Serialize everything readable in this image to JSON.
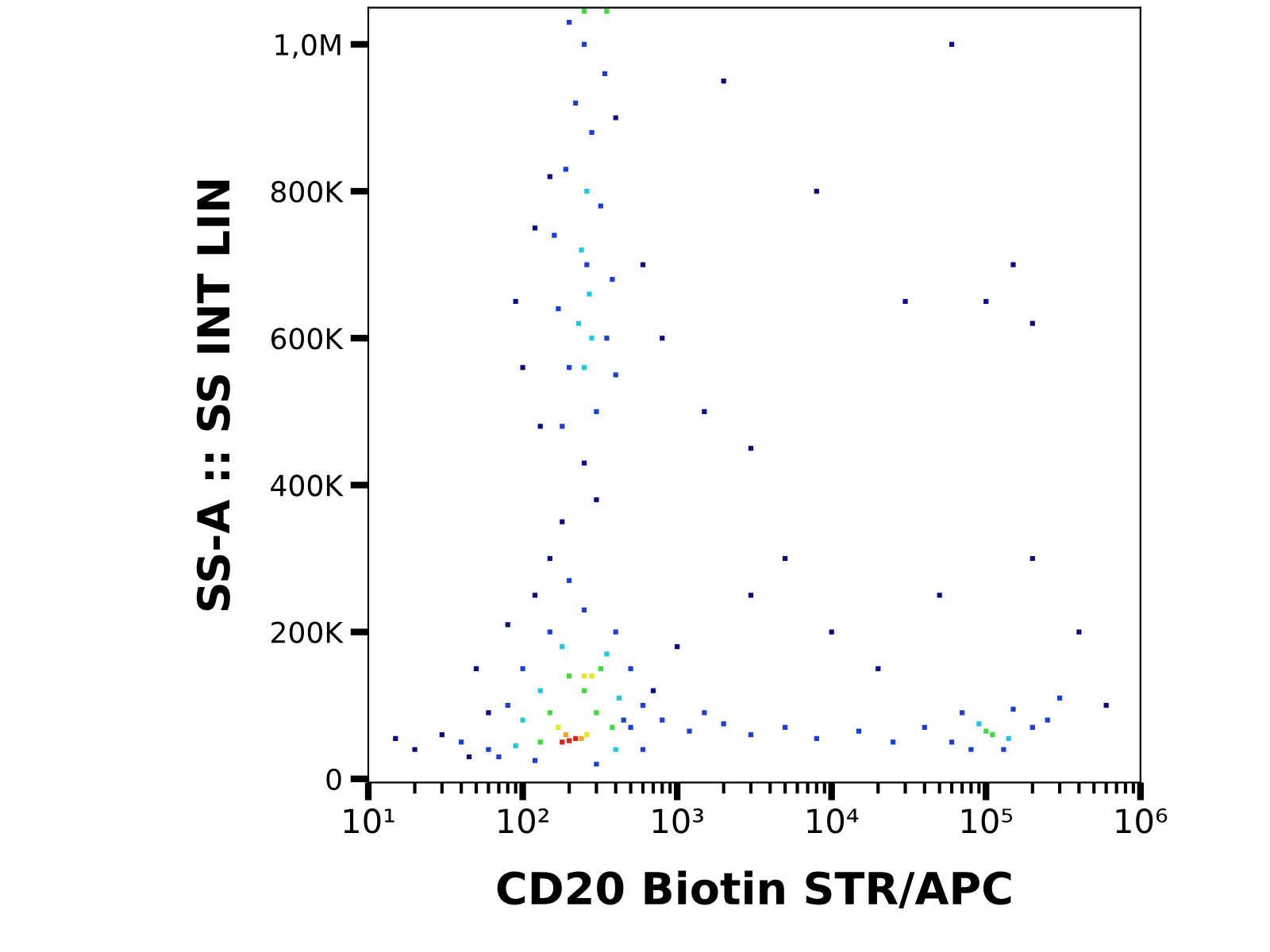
{
  "chart_data": {
    "type": "scatter",
    "xlabel": "CD20 Biotin STR/APC",
    "ylabel": "SS-A :: SS INT LIN",
    "log": "x",
    "marker": "square",
    "grid": false,
    "xlim": [
      10,
      1000000
    ],
    "xticks": [
      {
        "value": 10,
        "label": "10¹"
      },
      {
        "value": 100,
        "label": "10²"
      },
      {
        "value": 1000,
        "label": "10³"
      },
      {
        "value": 10000,
        "label": "10⁴"
      },
      {
        "value": 100000,
        "label": "10⁵"
      },
      {
        "value": 1000000,
        "label": "10⁶"
      }
    ],
    "ylim": [
      -5000,
      1050000
    ],
    "yticks": [
      0,
      {
        "value": 200000,
        "label": "200K"
      },
      {
        "value": 400000,
        "label": "400K"
      },
      {
        "value": 600000,
        "label": "600K"
      },
      {
        "value": 800000,
        "label": "800K"
      },
      {
        "value": 1000000,
        "label": "1,0M"
      }
    ],
    "x": [
      20,
      30,
      15,
      45,
      60,
      50,
      80,
      120,
      150,
      180,
      300,
      250,
      130,
      100,
      90,
      120,
      150,
      400,
      600,
      800,
      1500,
      3000,
      5000,
      10000,
      20000,
      50000,
      200000,
      400000,
      600000,
      2000,
      8000,
      30000,
      60000,
      150000,
      200000,
      100000,
      3000,
      1000,
      700,
      500,
      800,
      1200,
      2000,
      3000,
      5000,
      8000,
      15000,
      25000,
      40000,
      600,
      1500,
      60000,
      70000,
      80000,
      150000,
      200000,
      250000,
      130000,
      300000,
      90000,
      140000,
      110000,
      100000,
      180,
      300,
      200,
      350,
      170,
      260,
      320,
      190,
      280,
      220,
      340,
      250,
      200,
      380,
      160,
      400,
      230,
      270,
      240,
      280,
      250,
      260,
      250,
      350,
      60,
      80,
      100,
      150,
      250,
      400,
      500,
      450,
      40,
      70,
      120,
      300,
      600,
      200,
      100,
      130,
      350,
      180,
      420,
      90,
      400,
      150,
      250,
      320,
      200,
      130,
      300,
      380,
      280,
      170,
      260,
      250,
      190,
      240,
      200,
      220,
      180
    ],
    "values": [
      40000,
      60000,
      55000,
      30000,
      90000,
      150000,
      210000,
      250000,
      300000,
      350000,
      380000,
      430000,
      480000,
      560000,
      650000,
      750000,
      820000,
      900000,
      700000,
      600000,
      500000,
      450000,
      300000,
      200000,
      150000,
      250000,
      300000,
      200000,
      100000,
      950000,
      800000,
      650000,
      1000000,
      700000,
      620000,
      650000,
      250000,
      180000,
      120000,
      70000,
      80000,
      65000,
      75000,
      60000,
      70000,
      55000,
      65000,
      50000,
      70000,
      40000,
      90000,
      50000,
      90000,
      40000,
      95000,
      70000,
      80000,
      40000,
      110000,
      75000,
      55000,
      60000,
      65000,
      480000,
      500000,
      560000,
      600000,
      640000,
      700000,
      780000,
      830000,
      880000,
      920000,
      960000,
      1000000,
      1030000,
      680000,
      740000,
      550000,
      620000,
      660000,
      720000,
      600000,
      560000,
      800000,
      1045000,
      1045000,
      40000,
      100000,
      150000,
      200000,
      230000,
      200000,
      150000,
      80000,
      50000,
      30000,
      25000,
      20000,
      100000,
      270000,
      80000,
      120000,
      170000,
      180000,
      110000,
      45000,
      40000,
      90000,
      120000,
      150000,
      140000,
      50000,
      90000,
      70000,
      140000,
      70000,
      60000,
      140000,
      60000,
      55000,
      52000,
      55000,
      50000
    ],
    "colors": [
      "#0a0a8c",
      "#0a0a8c",
      "#0a0a8c",
      "#0a0a8c",
      "#0a0a8c",
      "#0a0a8c",
      "#0a0a8c",
      "#0a0a8c",
      "#0a0a8c",
      "#0a0a8c",
      "#0a0a8c",
      "#0a0a8c",
      "#0a0a8c",
      "#0a0a8c",
      "#0a0a8c",
      "#0a0a8c",
      "#0a0a8c",
      "#0a0a8c",
      "#0a0a8c",
      "#0a0a8c",
      "#0a0a8c",
      "#0a0a8c",
      "#0a0a8c",
      "#0a0a8c",
      "#0a0a8c",
      "#0a0a8c",
      "#0a0a8c",
      "#0a0a8c",
      "#0a0a8c",
      "#0a0a8c",
      "#0a0a8c",
      "#0a0a8c",
      "#0a0a8c",
      "#0a0a8c",
      "#0a0a8c",
      "#0a0a8c",
      "#0a0a8c",
      "#0a0a8c",
      "#0a0a8c",
      "#1a3fd6",
      "#1a3fd6",
      "#1a3fd6",
      "#1a3fd6",
      "#1a3fd6",
      "#1a3fd6",
      "#1a3fd6",
      "#1a3fd6",
      "#1a3fd6",
      "#1a3fd6",
      "#1a3fd6",
      "#1a3fd6",
      "#1a3fd6",
      "#1a3fd6",
      "#1a3fd6",
      "#1a3fd6",
      "#1a3fd6",
      "#1a3fd6",
      "#1a3fd6",
      "#1a3fd6",
      "#1ec8e8",
      "#1ec8e8",
      "#3ddc3d",
      "#3ddc3d",
      "#1a3fd6",
      "#1a3fd6",
      "#1a3fd6",
      "#1a3fd6",
      "#1a3fd6",
      "#1a3fd6",
      "#1a3fd6",
      "#1a3fd6",
      "#1a3fd6",
      "#1a3fd6",
      "#1a3fd6",
      "#1a3fd6",
      "#1a3fd6",
      "#1a3fd6",
      "#1a3fd6",
      "#1a3fd6",
      "#1ec8e8",
      "#1ec8e8",
      "#1ec8e8",
      "#1ec8e8",
      "#1ec8e8",
      "#1ec8e8",
      "#3ddc3d",
      "#3ddc3d",
      "#1a3fd6",
      "#1a3fd6",
      "#1a3fd6",
      "#1a3fd6",
      "#1a3fd6",
      "#1a3fd6",
      "#1a3fd6",
      "#1a3fd6",
      "#1a3fd6",
      "#1a3fd6",
      "#1a3fd6",
      "#1a3fd6",
      "#1a3fd6",
      "#1a3fd6",
      "#1ec8e8",
      "#1ec8e8",
      "#1ec8e8",
      "#1ec8e8",
      "#1ec8e8",
      "#1ec8e8",
      "#1ec8e8",
      "#3ddc3d",
      "#3ddc3d",
      "#3ddc3d",
      "#3ddc3d",
      "#3ddc3d",
      "#3ddc3d",
      "#3ddc3d",
      "#e8e81a",
      "#e8e81a",
      "#e8e81a",
      "#e8e81a",
      "#f5a623",
      "#f5a623",
      "#e0201b",
      "#e0201b",
      "#e0201b"
    ]
  }
}
